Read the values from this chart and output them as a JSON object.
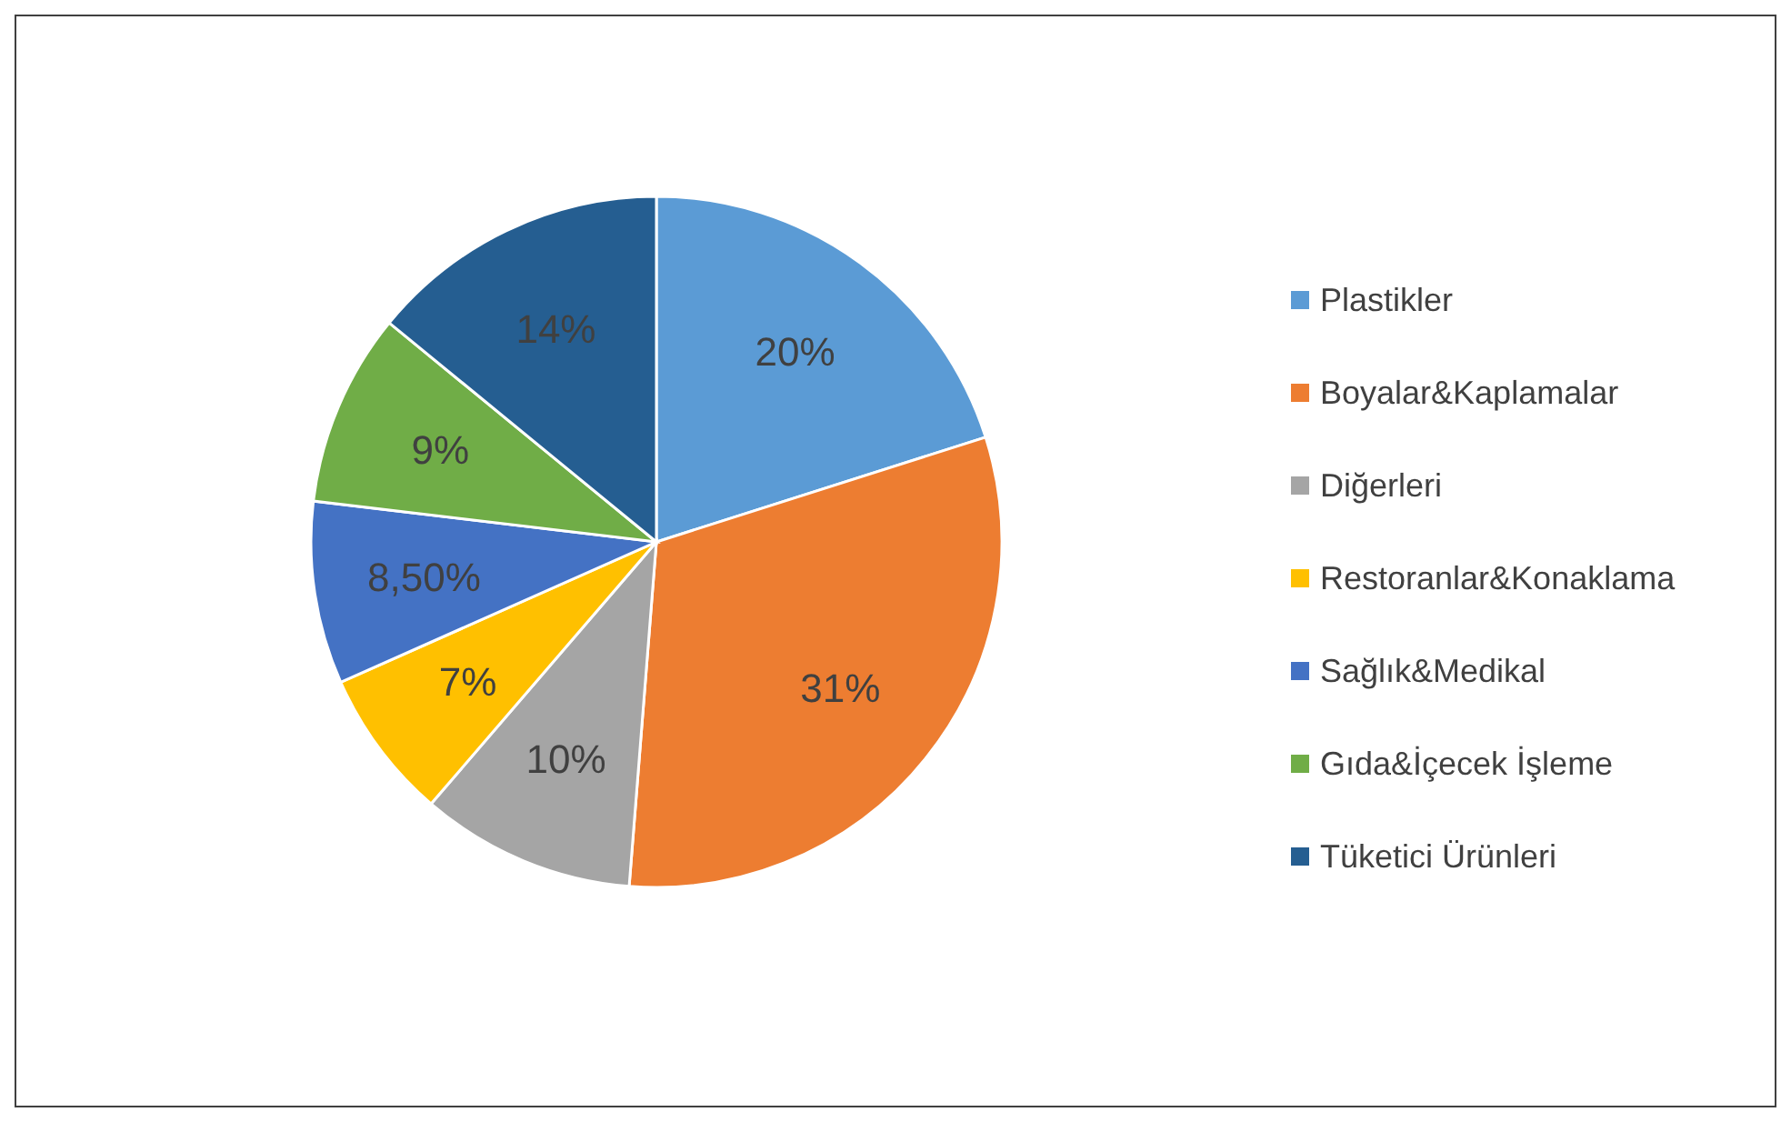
{
  "chart_data": {
    "type": "pie",
    "categories": [
      "Plastikler",
      "Boyalar&Kaplamalar",
      "Diğerleri",
      "Restoranlar&Konaklama",
      "Sağlık&Medikal",
      "Gıda&İçecek İşleme",
      "Tüketici Ürünleri"
    ],
    "values": [
      20,
      31,
      10,
      7,
      8.5,
      9,
      14
    ],
    "value_labels": [
      "20%",
      "31%",
      "10%",
      "7%",
      "8,50%",
      "9%",
      "14%"
    ],
    "colors": [
      "#5b9bd5",
      "#ed7d31",
      "#a5a5a5",
      "#ffc000",
      "#4472c4",
      "#70ad47",
      "#255e91"
    ],
    "legend": "right"
  }
}
